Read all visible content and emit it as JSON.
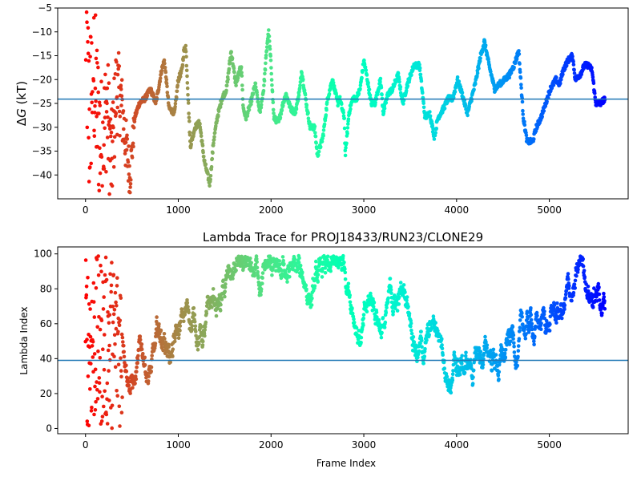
{
  "chart_data": [
    {
      "type": "scatter",
      "title": "",
      "xlabel": "",
      "ylabel": "ΔG (kT)",
      "ylabel_parts": {
        "delta": "Δ",
        "var": "G",
        "unit": " (kT)"
      },
      "xlim": [
        -300,
        5850
      ],
      "ylim": [
        -45,
        -5
      ],
      "x_ticks": [
        0,
        1000,
        2000,
        3000,
        4000,
        5000
      ],
      "y_ticks": [
        -40,
        -35,
        -30,
        -25,
        -20,
        -15,
        -10,
        -5
      ],
      "hline": -24.1,
      "colormap": "rainbow",
      "line_color": "#1f77b4",
      "x_max_frame": 5600,
      "trajectory": [
        [
          0,
          -6
        ],
        [
          40,
          -30
        ],
        [
          80,
          -16
        ],
        [
          130,
          -28
        ],
        [
          180,
          -35
        ],
        [
          230,
          -25
        ],
        [
          280,
          -38
        ],
        [
          330,
          -22
        ],
        [
          380,
          -24
        ],
        [
          430,
          -33
        ],
        [
          480,
          -40
        ],
        [
          530,
          -28
        ],
        [
          580,
          -25
        ],
        [
          640,
          -24
        ],
        [
          700,
          -22
        ],
        [
          760,
          -25
        ],
        [
          820,
          -18
        ],
        [
          850,
          -16
        ],
        [
          900,
          -26
        ],
        [
          960,
          -27
        ],
        [
          1000,
          -20
        ],
        [
          1040,
          -18
        ],
        [
          1060,
          -14
        ],
        [
          1080,
          -13
        ],
        [
          1100,
          -21
        ],
        [
          1130,
          -34
        ],
        [
          1180,
          -30
        ],
        [
          1230,
          -29
        ],
        [
          1280,
          -37
        ],
        [
          1340,
          -42
        ],
        [
          1380,
          -33
        ],
        [
          1420,
          -28
        ],
        [
          1470,
          -24
        ],
        [
          1520,
          -22
        ],
        [
          1570,
          -14
        ],
        [
          1620,
          -21
        ],
        [
          1680,
          -17
        ],
        [
          1700,
          -26
        ],
        [
          1730,
          -28
        ],
        [
          1780,
          -25
        ],
        [
          1830,
          -21
        ],
        [
          1880,
          -27
        ],
        [
          1920,
          -22
        ],
        [
          1960,
          -12
        ],
        [
          1975,
          -10
        ],
        [
          2000,
          -17
        ],
        [
          2030,
          -28
        ],
        [
          2080,
          -29
        ],
        [
          2130,
          -25
        ],
        [
          2160,
          -23
        ],
        [
          2210,
          -26
        ],
        [
          2260,
          -27
        ],
        [
          2310,
          -22
        ],
        [
          2330,
          -18
        ],
        [
          2380,
          -25
        ],
        [
          2420,
          -30
        ],
        [
          2470,
          -30
        ],
        [
          2500,
          -36
        ],
        [
          2560,
          -32
        ],
        [
          2610,
          -24
        ],
        [
          2660,
          -20
        ],
        [
          2720,
          -25
        ],
        [
          2740,
          -24
        ],
        [
          2790,
          -28
        ],
        [
          2800,
          -36
        ],
        [
          2840,
          -27
        ],
        [
          2880,
          -24
        ],
        [
          2920,
          -24
        ],
        [
          2960,
          -22
        ],
        [
          3000,
          -16
        ],
        [
          3030,
          -19
        ],
        [
          3080,
          -25
        ],
        [
          3120,
          -25
        ],
        [
          3180,
          -20
        ],
        [
          3210,
          -27
        ],
        [
          3260,
          -23
        ],
        [
          3310,
          -22
        ],
        [
          3350,
          -20
        ],
        [
          3370,
          -19
        ],
        [
          3420,
          -25
        ],
        [
          3470,
          -21
        ],
        [
          3540,
          -17
        ],
        [
          3600,
          -17
        ],
        [
          3660,
          -28
        ],
        [
          3710,
          -27
        ],
        [
          3760,
          -32
        ],
        [
          3800,
          -28
        ],
        [
          3860,
          -26
        ],
        [
          3910,
          -24
        ],
        [
          3960,
          -24
        ],
        [
          4010,
          -20
        ],
        [
          4060,
          -23
        ],
        [
          4100,
          -26
        ],
        [
          4120,
          -27
        ],
        [
          4160,
          -24
        ],
        [
          4200,
          -21
        ],
        [
          4260,
          -15
        ],
        [
          4300,
          -12
        ],
        [
          4350,
          -17
        ],
        [
          4410,
          -22
        ],
        [
          4460,
          -21
        ],
        [
          4520,
          -20
        ],
        [
          4570,
          -19
        ],
        [
          4620,
          -17
        ],
        [
          4670,
          -14
        ],
        [
          4720,
          -28
        ],
        [
          4760,
          -33
        ],
        [
          4820,
          -33
        ],
        [
          4860,
          -30
        ],
        [
          4910,
          -28
        ],
        [
          4960,
          -25
        ],
        [
          5010,
          -22
        ],
        [
          5070,
          -20
        ],
        [
          5110,
          -21
        ],
        [
          5150,
          -18
        ],
        [
          5200,
          -16
        ],
        [
          5250,
          -15
        ],
        [
          5280,
          -20
        ],
        [
          5330,
          -19
        ],
        [
          5380,
          -17
        ],
        [
          5420,
          -17
        ],
        [
          5460,
          -18
        ],
        [
          5500,
          -25
        ],
        [
          5550,
          -25
        ],
        [
          5600,
          -24
        ]
      ]
    },
    {
      "type": "scatter",
      "title": "Lambda Trace for PROJ18433/RUN23/CLONE29",
      "xlabel": "Frame Index",
      "ylabel": "Lambda Index",
      "xlim": [
        -300,
        5850
      ],
      "ylim": [
        -3,
        104
      ],
      "x_ticks": [
        0,
        1000,
        2000,
        3000,
        4000,
        5000
      ],
      "y_ticks": [
        0,
        20,
        40,
        60,
        80,
        100
      ],
      "hline": 39,
      "colormap": "rainbow",
      "line_color": "#1f77b4",
      "x_max_frame": 5600,
      "y_range": [
        0,
        99
      ]
    }
  ]
}
